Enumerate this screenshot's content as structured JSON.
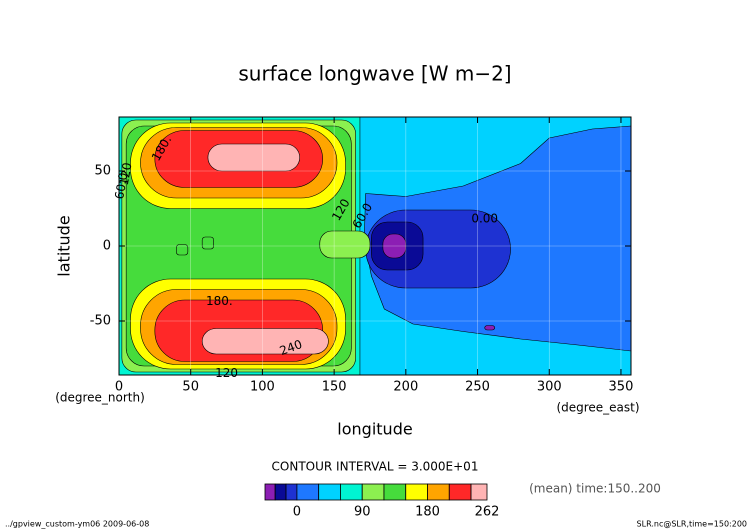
{
  "chart_data": {
    "type": "contour",
    "title": "surface longwave [W m−2]",
    "xlabel": "longitude",
    "ylabel": "latitude",
    "xunit": "(degree_east)",
    "yunit": "(degree_north)",
    "xlim": [
      0,
      357
    ],
    "ylim": [
      -86,
      86
    ],
    "xticks": [
      0,
      50,
      100,
      150,
      200,
      250,
      300,
      350
    ],
    "yticks": [
      -50,
      0,
      50
    ],
    "grid": true,
    "contour_interval": "CONTOUR INTERVAL = 3.000E+01",
    "colorbar": {
      "bounds": [
        -44,
        -30,
        -15,
        0,
        30,
        60,
        90,
        120,
        150,
        180,
        210,
        240,
        262
      ],
      "colors": [
        "#8c1eb4",
        "#0a0a96",
        "#1e32d2",
        "#1e78ff",
        "#00d2ff",
        "#00f5d2",
        "#8cf050",
        "#46dc3c",
        "#ffff00",
        "#ffa500",
        "#ff2828",
        "#ffb4b4"
      ],
      "ticks": [
        0,
        90,
        180,
        262
      ]
    },
    "contour_labels": [
      "180.",
      "60.0",
      "120",
      "120",
      "60.0",
      "0.00",
      "180.",
      "240",
      "120"
    ],
    "annotation": "(mean) time:150..200"
  },
  "footer": {
    "left": "../gpview_custom-ym06  2009-06-08",
    "right": "SLR.nc@SLR,time=150:200"
  }
}
